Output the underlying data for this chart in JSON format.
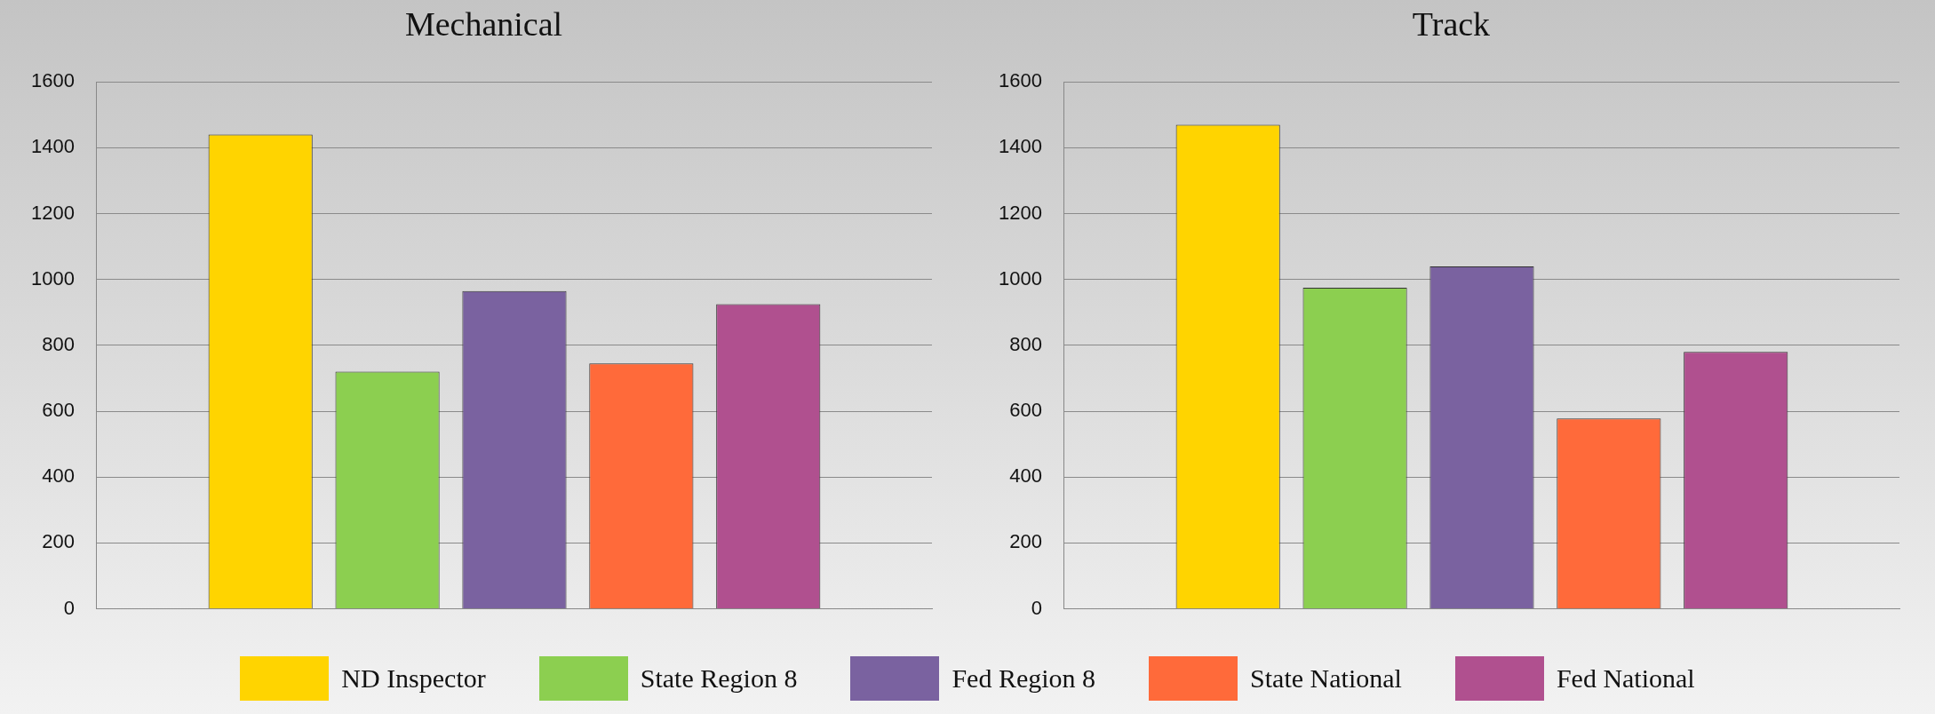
{
  "chart_data": [
    {
      "type": "bar",
      "title": "Mechanical",
      "categories": [
        null
      ],
      "ylim": [
        0,
        1600
      ],
      "yticks": [
        0,
        200,
        400,
        600,
        800,
        1000,
        1200,
        1400,
        1600
      ],
      "grid": "y",
      "legend": "bottom",
      "series": [
        {
          "name": "ND Inspector",
          "color": "#ffd400",
          "values": [
            1440
          ]
        },
        {
          "name": "State Region 8",
          "color": "#8ccf50",
          "values": [
            720
          ]
        },
        {
          "name": "Fed Region 8",
          "color": "#7a62a0",
          "values": [
            965
          ]
        },
        {
          "name": "State National",
          "color": "#ff6a3a",
          "values": [
            745
          ]
        },
        {
          "name": "Fed National",
          "color": "#b0508f",
          "values": [
            925
          ]
        }
      ]
    },
    {
      "type": "bar",
      "title": "Track",
      "categories": [
        null
      ],
      "ylim": [
        0,
        1600
      ],
      "yticks": [
        0,
        200,
        400,
        600,
        800,
        1000,
        1200,
        1400,
        1600
      ],
      "grid": "y",
      "legend": "bottom",
      "series": [
        {
          "name": "ND Inspector",
          "color": "#ffd400",
          "values": [
            1470
          ]
        },
        {
          "name": "State Region 8",
          "color": "#8ccf50",
          "values": [
            975
          ]
        },
        {
          "name": "Fed Region 8",
          "color": "#7a62a0",
          "values": [
            1040
          ]
        },
        {
          "name": "State National",
          "color": "#ff6a3a",
          "values": [
            578
          ]
        },
        {
          "name": "Fed National",
          "color": "#b0508f",
          "values": [
            780
          ]
        }
      ]
    }
  ]
}
